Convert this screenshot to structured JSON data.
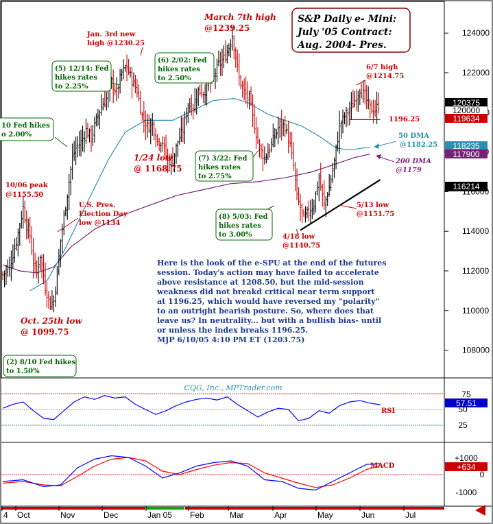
{
  "title": {
    "line1": "S&P Daily e- Mini:",
    "line2": "July '05 Contract:",
    "line3": "Aug. 2004- Pres."
  },
  "watermark": "CQG, Inc., MPTrader.com",
  "commentary": [
    "Here is the look of the e-SPU at the end of the futures",
    "session. Today's action may have failed to accelerate",
    "above resistance at 1208.50, but the mid-session",
    "weakness did not breakd critical near term support",
    "at 1196.25, which would have reversed my \"polarity\"",
    "to an outright bearish posture. So, where does that",
    "leave us? In neutrality... but with a bullish bias- until",
    "or unless the index breaks 1196.25.",
    "MJP 6/10/05 4:10 PM ET (1203.75)"
  ],
  "annotations": {
    "march7": [
      "March 7th high",
      "@1239.25"
    ],
    "jan3": [
      "Jan. 3rd new",
      "high @1230.25"
    ],
    "jun7": [
      "6/7 high",
      "@1214.75"
    ],
    "oct10": [
      "10/06 peak",
      "@1155.50"
    ],
    "jan24": [
      "1/24 low",
      "@ 1168.75"
    ],
    "election": [
      "U.S. Pres.",
      "Election Day",
      "low @1134"
    ],
    "oct25": [
      "Oct. 25th low",
      "@ 1099.75"
    ],
    "apr18": [
      "4/18 low",
      "@1140.75"
    ],
    "may13": [
      "5/13 low",
      "@1151.75"
    ],
    "support": "1196.25",
    "dma50": [
      "50 DMA",
      "@1182.25"
    ],
    "dma200": [
      "200 DMA",
      "@1179"
    ]
  },
  "fed_boxes": {
    "b1": [
      "(5) 12/14: Fed",
      "hikes rates",
      "to 2.25%"
    ],
    "b2": [
      "(6) 2/02: Fed",
      "hikes rates",
      "to 2.50%"
    ],
    "b3": [
      "(7) 3/22: Fed",
      "hikes rates",
      "to 2.75%"
    ],
    "b4": [
      "(8) 5/03: Fed",
      "hikes rates",
      "to 3.00%"
    ],
    "b5": [
      "10 Fed hikes",
      "o 2.00%"
    ],
    "b6": [
      "(2) 8/10 Fed hikes",
      "to 1.50%"
    ]
  },
  "price_badges": {
    "a": "120375",
    "b": "120000",
    "c": "119634",
    "d": "118235",
    "e": "117900",
    "f": "116214"
  },
  "axis": {
    "price_ticks": [
      "124000",
      "122000",
      "120000",
      "118000",
      "116000",
      "114000",
      "112000",
      "110000",
      "108000"
    ],
    "rsi_ticks": [
      "75",
      "50",
      "25"
    ],
    "macd_ticks": [
      "+1000",
      "0",
      "-1000"
    ],
    "months": [
      "4",
      "Oct",
      "Nov",
      "Dec",
      "Jan 05",
      "Feb",
      "Mar",
      "Apr",
      "May",
      "Jun",
      "Jul"
    ]
  },
  "indicators": {
    "rsi_label": "RSI",
    "rsi_value": "57.51",
    "macd_label": "MACD",
    "macd_value": "+634"
  },
  "colors": {
    "up": "#000000",
    "down": "#cc0000",
    "dma50": "#2a8fb0",
    "dma200": "#7a1f7a",
    "rsi": "#0000ff",
    "macd": "#0000ff",
    "signal": "#ff0000",
    "note_red": "#cc0000",
    "note_green": "#006600",
    "note_blue": "#1a3a8a"
  },
  "chart_data": {
    "type": "candlestick",
    "y_unit": "index points x100",
    "ylim": [
      106600,
      125600
    ],
    "x_months": [
      "Oct",
      "Nov",
      "Dec",
      "Jan 05",
      "Feb",
      "Mar",
      "Apr",
      "May",
      "Jun",
      "Jul"
    ],
    "price_path": [
      [
        0,
        111800
      ],
      [
        4,
        112200
      ],
      [
        8,
        113500
      ],
      [
        12,
        115200
      ],
      [
        14,
        114300
      ],
      [
        16,
        113800
      ],
      [
        18,
        112400
      ],
      [
        20,
        111900
      ],
      [
        22,
        112800
      ],
      [
        25,
        111200
      ],
      [
        28,
        110300
      ],
      [
        30,
        110500
      ],
      [
        32,
        111900
      ],
      [
        34,
        113500
      ],
      [
        36,
        114700
      ],
      [
        39,
        116500
      ],
      [
        41,
        117700
      ],
      [
        43,
        118200
      ],
      [
        46,
        118500
      ],
      [
        49,
        119100
      ],
      [
        52,
        118700
      ],
      [
        55,
        119600
      ],
      [
        58,
        120300
      ],
      [
        61,
        120700
      ],
      [
        64,
        121500
      ],
      [
        67,
        121000
      ],
      [
        70,
        122000
      ],
      [
        73,
        122300
      ],
      [
        76,
        121600
      ],
      [
        79,
        121100
      ],
      [
        82,
        119800
      ],
      [
        85,
        119300
      ],
      [
        88,
        119400
      ],
      [
        91,
        118600
      ],
      [
        94,
        118500
      ],
      [
        97,
        117500
      ],
      [
        100,
        117600
      ],
      [
        103,
        118500
      ],
      [
        106,
        119100
      ],
      [
        109,
        120400
      ],
      [
        112,
        120300
      ],
      [
        115,
        121100
      ],
      [
        118,
        121000
      ],
      [
        121,
        121400
      ],
      [
        124,
        121800
      ],
      [
        127,
        122400
      ],
      [
        130,
        122700
      ],
      [
        133,
        123300
      ],
      [
        135,
        123900
      ],
      [
        137,
        122800
      ],
      [
        139,
        121700
      ],
      [
        142,
        121000
      ],
      [
        145,
        120700
      ],
      [
        148,
        119300
      ],
      [
        151,
        118200
      ],
      [
        154,
        117700
      ],
      [
        157,
        118200
      ],
      [
        160,
        118800
      ],
      [
        163,
        119400
      ],
      [
        166,
        119300
      ],
      [
        169,
        118300
      ],
      [
        171,
        117300
      ],
      [
        173,
        115700
      ],
      [
        175,
        115200
      ],
      [
        177,
        114600
      ],
      [
        180,
        115000
      ],
      [
        183,
        115400
      ],
      [
        186,
        116700
      ],
      [
        189,
        115300
      ],
      [
        192,
        116200
      ],
      [
        195,
        117500
      ],
      [
        198,
        119300
      ],
      [
        201,
        119800
      ],
      [
        204,
        120100
      ],
      [
        207,
        120600
      ],
      [
        210,
        121200
      ],
      [
        213,
        120800
      ],
      [
        216,
        120200
      ],
      [
        219,
        120100
      ],
      [
        221,
        120375
      ]
    ],
    "dma50": [
      [
        16,
        111000
      ],
      [
        26,
        111500
      ],
      [
        36,
        113000
      ],
      [
        50,
        115500
      ],
      [
        62,
        117600
      ],
      [
        72,
        119000
      ],
      [
        84,
        119600
      ],
      [
        100,
        119600
      ],
      [
        112,
        120100
      ],
      [
        124,
        120600
      ],
      [
        136,
        120700
      ],
      [
        144,
        120500
      ],
      [
        156,
        119900
      ],
      [
        166,
        119600
      ],
      [
        176,
        119300
      ],
      [
        186,
        118800
      ],
      [
        196,
        118200
      ],
      [
        204,
        118100
      ],
      [
        212,
        118200
      ],
      [
        216,
        118235
      ]
    ],
    "dma200": [
      [
        0,
        112300
      ],
      [
        10,
        112000
      ],
      [
        20,
        111900
      ],
      [
        30,
        112200
      ],
      [
        40,
        113200
      ],
      [
        54,
        114100
      ],
      [
        70,
        114800
      ],
      [
        86,
        115300
      ],
      [
        102,
        115800
      ],
      [
        118,
        116100
      ],
      [
        134,
        116400
      ],
      [
        150,
        116500
      ],
      [
        166,
        116700
      ],
      [
        182,
        117000
      ],
      [
        196,
        117400
      ],
      [
        206,
        117700
      ],
      [
        216,
        117900
      ]
    ],
    "support_line": [
      [
        175,
        114050
      ],
      [
        222,
        116600
      ]
    ],
    "resistance_line": [
      [
        204,
        119634
      ],
      [
        222,
        119634
      ]
    ],
    "rsi_path": [
      [
        0,
        52
      ],
      [
        6,
        58
      ],
      [
        12,
        62
      ],
      [
        18,
        48
      ],
      [
        24,
        36
      ],
      [
        30,
        34
      ],
      [
        36,
        48
      ],
      [
        42,
        62
      ],
      [
        48,
        70
      ],
      [
        54,
        66
      ],
      [
        60,
        72
      ],
      [
        66,
        68
      ],
      [
        72,
        70
      ],
      [
        78,
        58
      ],
      [
        84,
        50
      ],
      [
        90,
        42
      ],
      [
        96,
        48
      ],
      [
        102,
        56
      ],
      [
        108,
        62
      ],
      [
        114,
        66
      ],
      [
        120,
        68
      ],
      [
        126,
        65
      ],
      [
        132,
        70
      ],
      [
        138,
        58
      ],
      [
        144,
        48
      ],
      [
        150,
        38
      ],
      [
        156,
        46
      ],
      [
        162,
        52
      ],
      [
        168,
        50
      ],
      [
        174,
        32
      ],
      [
        180,
        36
      ],
      [
        186,
        48
      ],
      [
        192,
        44
      ],
      [
        198,
        56
      ],
      [
        204,
        62
      ],
      [
        210,
        64
      ],
      [
        216,
        60
      ],
      [
        222,
        57.51
      ]
    ],
    "macd_path": [
      [
        0,
        -400
      ],
      [
        12,
        -300
      ],
      [
        24,
        -700
      ],
      [
        34,
        -600
      ],
      [
        44,
        400
      ],
      [
        54,
        900
      ],
      [
        64,
        1100
      ],
      [
        74,
        1000
      ],
      [
        84,
        500
      ],
      [
        94,
        -200
      ],
      [
        104,
        100
      ],
      [
        114,
        500
      ],
      [
        124,
        700
      ],
      [
        134,
        800
      ],
      [
        144,
        500
      ],
      [
        154,
        -300
      ],
      [
        164,
        -400
      ],
      [
        174,
        -800
      ],
      [
        184,
        -900
      ],
      [
        194,
        -400
      ],
      [
        204,
        100
      ],
      [
        214,
        600
      ],
      [
        222,
        634
      ]
    ],
    "signal_path": [
      [
        0,
        -500
      ],
      [
        12,
        -400
      ],
      [
        24,
        -600
      ],
      [
        34,
        -650
      ],
      [
        44,
        -100
      ],
      [
        54,
        500
      ],
      [
        64,
        900
      ],
      [
        74,
        1000
      ],
      [
        84,
        800
      ],
      [
        94,
        200
      ],
      [
        104,
        0
      ],
      [
        114,
        300
      ],
      [
        124,
        550
      ],
      [
        134,
        700
      ],
      [
        144,
        650
      ],
      [
        154,
        100
      ],
      [
        164,
        -200
      ],
      [
        174,
        -500
      ],
      [
        184,
        -750
      ],
      [
        194,
        -600
      ],
      [
        204,
        -200
      ],
      [
        214,
        300
      ],
      [
        222,
        520
      ]
    ]
  }
}
